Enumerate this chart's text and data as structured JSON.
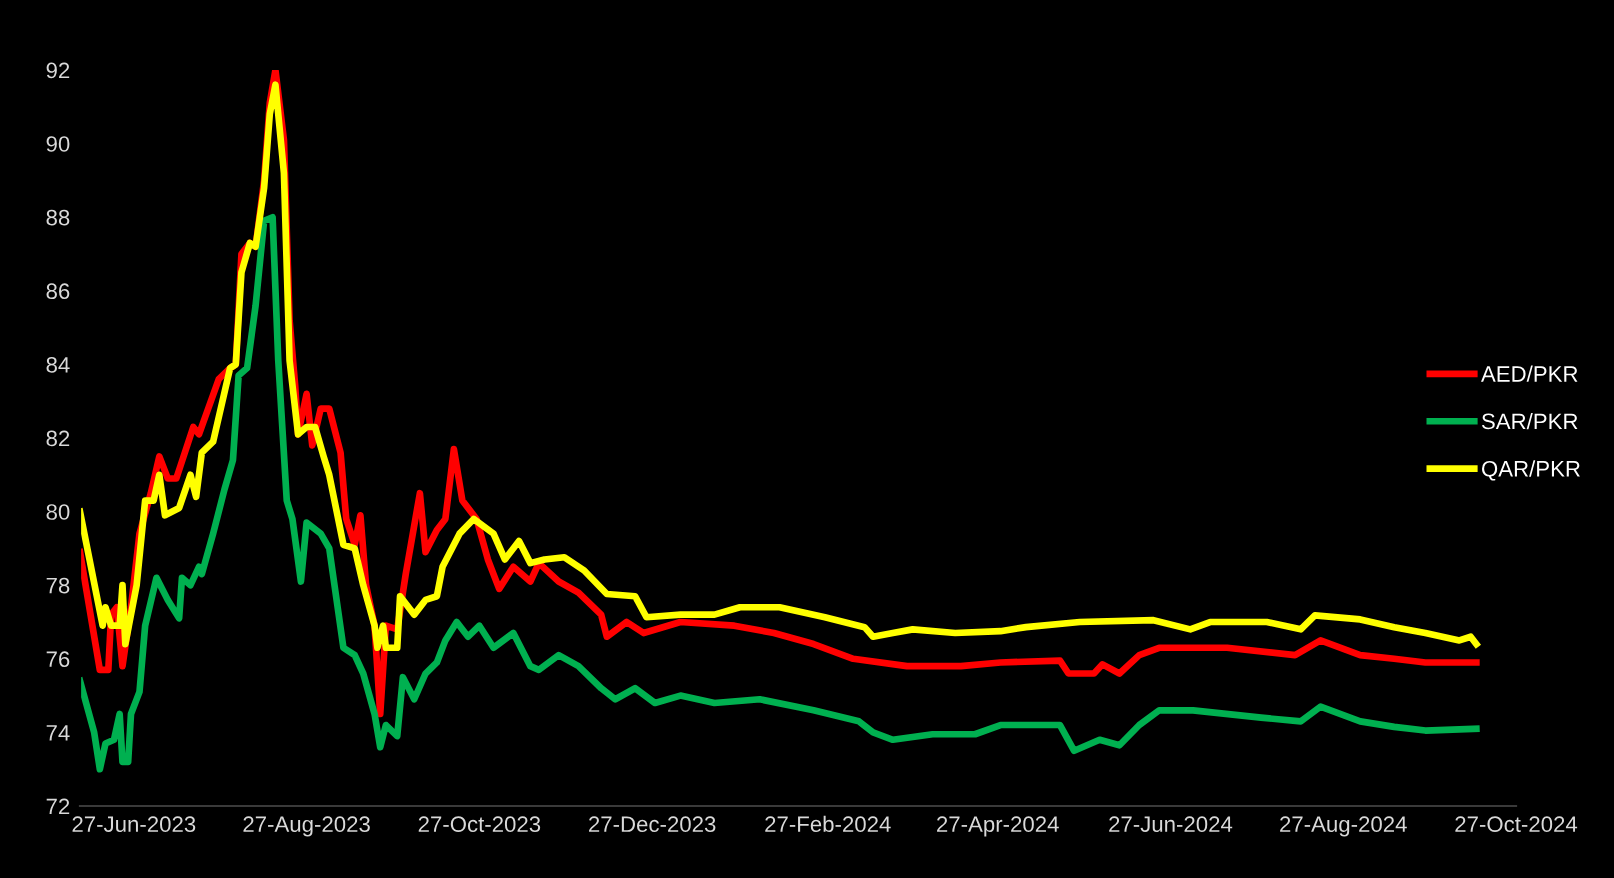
{
  "chart_data": {
    "type": "line",
    "xlim": [
      "2023-06-08",
      "2024-10-27"
    ],
    "ylim": [
      72,
      92
    ],
    "yticks": [
      72,
      74,
      76,
      78,
      80,
      82,
      84,
      86,
      88,
      90,
      92
    ],
    "xticks": [
      {
        "value": "2023-06-27",
        "label": "27-Jun-2023"
      },
      {
        "value": "2023-08-27",
        "label": "27-Aug-2023"
      },
      {
        "value": "2023-10-27",
        "label": "27-Oct-2023"
      },
      {
        "value": "2023-12-27",
        "label": "27-Dec-2023"
      },
      {
        "value": "2024-02-27",
        "label": "27-Feb-2024"
      },
      {
        "value": "2024-04-27",
        "label": "27-Apr-2024"
      },
      {
        "value": "2024-06-27",
        "label": "27-Jun-2024"
      },
      {
        "value": "2024-08-27",
        "label": "27-Aug-2024"
      },
      {
        "value": "2024-10-27",
        "label": "27-Oct-2024"
      }
    ],
    "grid": false,
    "legend": "right",
    "marker": "none",
    "line_style": "solid",
    "series": [
      {
        "name": "AED/PKR",
        "color": "#ff0000",
        "x": [
          "2023-06-08",
          "2023-06-15",
          "2023-06-18",
          "2023-06-19",
          "2023-06-21",
          "2023-06-23",
          "2023-06-26",
          "2023-06-29",
          "2023-07-03",
          "2023-07-06",
          "2023-07-09",
          "2023-07-12",
          "2023-07-18",
          "2023-07-20",
          "2023-07-27",
          "2023-07-31",
          "2023-08-02",
          "2023-08-04",
          "2023-08-07",
          "2023-08-09",
          "2023-08-12",
          "2023-08-14",
          "2023-08-16",
          "2023-08-19",
          "2023-08-21",
          "2023-08-23",
          "2023-08-24",
          "2023-08-27",
          "2023-08-29",
          "2023-09-01",
          "2023-09-04",
          "2023-09-08",
          "2023-09-10",
          "2023-09-13",
          "2023-09-15",
          "2023-09-17",
          "2023-09-20",
          "2023-09-22",
          "2023-09-24",
          "2023-09-28",
          "2023-10-01",
          "2023-10-06",
          "2023-10-08",
          "2023-10-12",
          "2023-10-15",
          "2023-10-18",
          "2023-10-21",
          "2023-10-26",
          "2023-10-30",
          "2023-11-03",
          "2023-11-08",
          "2023-11-14",
          "2023-11-17",
          "2023-11-24",
          "2023-12-01",
          "2023-12-09",
          "2023-12-11",
          "2023-12-18",
          "2023-12-24",
          "2024-01-06",
          "2024-01-25",
          "2024-02-08",
          "2024-02-22",
          "2024-03-07",
          "2024-03-26",
          "2024-04-14",
          "2024-04-28",
          "2024-05-19",
          "2024-05-22",
          "2024-05-31",
          "2024-06-03",
          "2024-06-09",
          "2024-06-16",
          "2024-06-23",
          "2024-07-05",
          "2024-07-17",
          "2024-08-10",
          "2024-08-19",
          "2024-09-02",
          "2024-09-14",
          "2024-09-25",
          "2024-10-13"
        ],
        "values": [
          78.9,
          75.7,
          75.7,
          77.2,
          77.4,
          75.8,
          77.4,
          79.4,
          80.5,
          81.5,
          80.9,
          80.9,
          82.3,
          82.1,
          83.6,
          83.9,
          84.0,
          87.0,
          87.3,
          87.2,
          89.0,
          91.1,
          92.0,
          90.1,
          85.2,
          83.4,
          82.1,
          83.2,
          81.8,
          82.8,
          82.8,
          81.6,
          79.8,
          79.1,
          79.9,
          78.0,
          76.9,
          74.5,
          76.9,
          76.8,
          78.3,
          80.5,
          78.9,
          79.5,
          79.8,
          81.7,
          80.3,
          79.8,
          78.7,
          77.9,
          78.5,
          78.1,
          78.6,
          78.1,
          77.8,
          77.2,
          76.6,
          77.0,
          76.7,
          77.0,
          76.9,
          76.7,
          76.4,
          76.0,
          75.8,
          75.8,
          75.9,
          75.95,
          75.6,
          75.6,
          75.85,
          75.6,
          76.1,
          76.3,
          76.3,
          76.3,
          76.1,
          76.5,
          76.1,
          76.0,
          75.9,
          75.9
        ]
      },
      {
        "name": "SAR/PKR",
        "color": "#00b050",
        "x": [
          "2023-06-08",
          "2023-06-13",
          "2023-06-15",
          "2023-06-17",
          "2023-06-20",
          "2023-06-22",
          "2023-06-23",
          "2023-06-25",
          "2023-06-26",
          "2023-06-29",
          "2023-07-01",
          "2023-07-05",
          "2023-07-09",
          "2023-07-13",
          "2023-07-14",
          "2023-07-17",
          "2023-07-20",
          "2023-07-21",
          "2023-07-25",
          "2023-07-29",
          "2023-08-01",
          "2023-08-03",
          "2023-08-06",
          "2023-08-09",
          "2023-08-12",
          "2023-08-15",
          "2023-08-17",
          "2023-08-20",
          "2023-08-22",
          "2023-08-25",
          "2023-08-27",
          "2023-09-01",
          "2023-09-04",
          "2023-09-09",
          "2023-09-13",
          "2023-09-16",
          "2023-09-20",
          "2023-09-22",
          "2023-09-24",
          "2023-09-28",
          "2023-09-30",
          "2023-10-04",
          "2023-10-08",
          "2023-10-12",
          "2023-10-15",
          "2023-10-19",
          "2023-10-23",
          "2023-10-27",
          "2023-11-01",
          "2023-11-08",
          "2023-11-14",
          "2023-11-17",
          "2023-11-24",
          "2023-12-01",
          "2023-12-09",
          "2023-12-14",
          "2023-12-21",
          "2023-12-28",
          "2024-01-06",
          "2024-01-18",
          "2024-02-03",
          "2024-02-22",
          "2024-03-09",
          "2024-03-14",
          "2024-03-21",
          "2024-04-04",
          "2024-04-19",
          "2024-04-28",
          "2024-05-19",
          "2024-05-24",
          "2024-06-02",
          "2024-06-09",
          "2024-06-16",
          "2024-06-23",
          "2024-07-05",
          "2024-07-29",
          "2024-08-12",
          "2024-08-19",
          "2024-09-02",
          "2024-09-14",
          "2024-09-25",
          "2024-10-13"
        ],
        "values": [
          75.4,
          74.0,
          73.0,
          73.7,
          73.8,
          74.5,
          73.2,
          73.2,
          74.5,
          75.1,
          76.9,
          78.2,
          77.6,
          77.1,
          78.2,
          78.0,
          78.5,
          78.3,
          79.4,
          80.6,
          81.4,
          83.7,
          83.9,
          85.6,
          87.9,
          88.0,
          84.1,
          80.3,
          79.8,
          78.1,
          79.7,
          79.4,
          79.0,
          76.3,
          76.1,
          75.6,
          74.5,
          73.6,
          74.2,
          73.9,
          75.5,
          74.9,
          75.6,
          75.9,
          76.5,
          77.0,
          76.6,
          76.9,
          76.3,
          76.7,
          75.8,
          75.7,
          76.1,
          75.8,
          75.2,
          74.9,
          75.2,
          74.8,
          75.0,
          74.8,
          74.9,
          74.6,
          74.3,
          74.0,
          73.8,
          73.95,
          73.95,
          74.2,
          74.2,
          73.5,
          73.8,
          73.65,
          74.2,
          74.6,
          74.6,
          74.4,
          74.3,
          74.7,
          74.3,
          74.15,
          74.05,
          74.1
        ]
      },
      {
        "name": "QAR/PKR",
        "color": "#ffff00",
        "x": [
          "2023-06-08",
          "2023-06-16",
          "2023-06-17",
          "2023-06-19",
          "2023-06-22",
          "2023-06-23",
          "2023-06-24",
          "2023-06-28",
          "2023-07-01",
          "2023-07-04",
          "2023-07-06",
          "2023-07-08",
          "2023-07-13",
          "2023-07-17",
          "2023-07-19",
          "2023-07-21",
          "2023-07-25",
          "2023-07-31",
          "2023-08-02",
          "2023-08-04",
          "2023-08-07",
          "2023-08-09",
          "2023-08-12",
          "2023-08-14",
          "2023-08-16",
          "2023-08-19",
          "2023-08-21",
          "2023-08-24",
          "2023-08-27",
          "2023-08-30",
          "2023-09-02",
          "2023-09-04",
          "2023-09-09",
          "2023-09-13",
          "2023-09-16",
          "2023-09-20",
          "2023-09-21",
          "2023-09-23",
          "2023-09-24",
          "2023-09-28",
          "2023-09-29",
          "2023-10-04",
          "2023-10-08",
          "2023-10-12",
          "2023-10-14",
          "2023-10-20",
          "2023-10-25",
          "2023-11-01",
          "2023-11-05",
          "2023-11-10",
          "2023-11-14",
          "2023-11-19",
          "2023-11-26",
          "2023-12-03",
          "2023-12-11",
          "2023-12-21",
          "2023-12-25",
          "2024-01-06",
          "2024-01-18",
          "2024-01-27",
          "2024-02-10",
          "2024-02-26",
          "2024-03-11",
          "2024-03-14",
          "2024-03-21",
          "2024-03-28",
          "2024-04-12",
          "2024-04-28",
          "2024-05-07",
          "2024-05-26",
          "2024-06-21",
          "2024-07-04",
          "2024-07-11",
          "2024-07-31",
          "2024-08-12",
          "2024-08-17",
          "2024-09-02",
          "2024-09-14",
          "2024-09-25",
          "2024-10-07",
          "2024-10-11",
          "2024-10-13"
        ],
        "values": [
          80.0,
          76.9,
          77.4,
          76.9,
          76.9,
          78.0,
          76.4,
          78.0,
          80.3,
          80.3,
          81.0,
          79.9,
          80.1,
          81.0,
          80.4,
          81.6,
          81.9,
          83.9,
          84.0,
          86.5,
          87.3,
          87.2,
          88.8,
          90.8,
          91.6,
          89.2,
          84.1,
          82.1,
          82.3,
          82.3,
          81.5,
          81.0,
          79.1,
          79.0,
          78.0,
          76.9,
          76.3,
          76.9,
          76.3,
          76.3,
          77.7,
          77.2,
          77.6,
          77.7,
          78.5,
          79.4,
          79.8,
          79.4,
          78.7,
          79.2,
          78.6,
          78.7,
          78.76,
          78.4,
          77.76,
          77.7,
          77.13,
          77.2,
          77.2,
          77.4,
          77.4,
          77.13,
          76.86,
          76.6,
          76.7,
          76.8,
          76.7,
          76.75,
          76.86,
          77.0,
          77.05,
          76.8,
          77.0,
          77.0,
          76.8,
          77.18,
          77.07,
          76.86,
          76.7,
          76.5,
          76.6,
          76.4
        ]
      }
    ]
  }
}
